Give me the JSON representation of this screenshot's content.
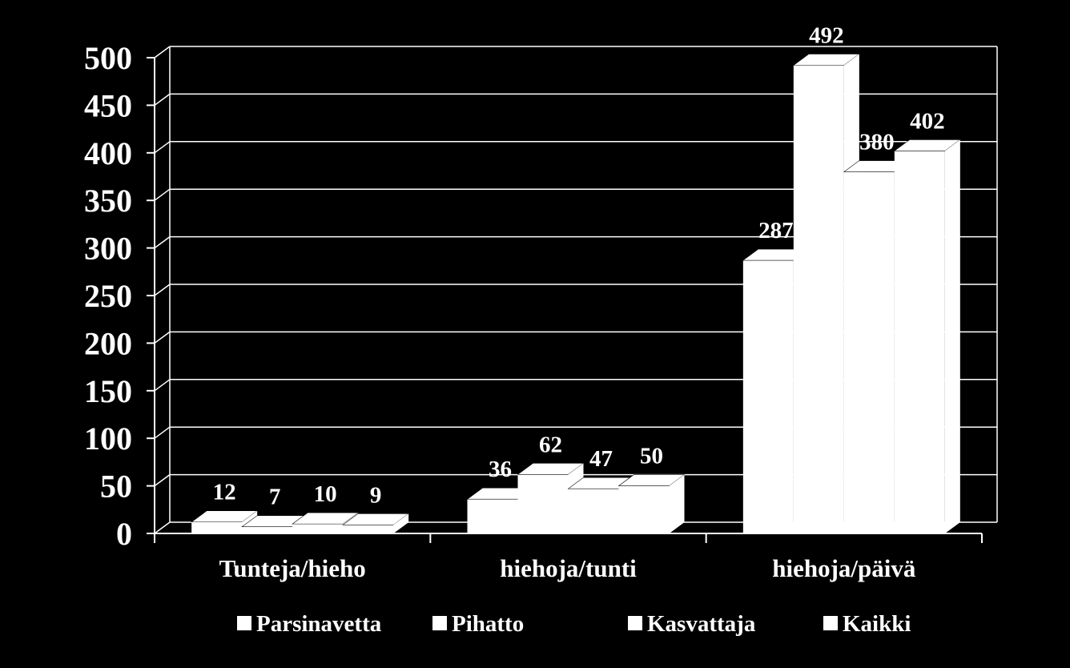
{
  "chart_data": {
    "type": "bar",
    "style": "3d-clustered",
    "title": "",
    "xlabel": "",
    "ylabel": "",
    "categories": [
      "Tunteja/hieho",
      "hiehoja/tunti",
      "hiehoja/päivä"
    ],
    "series": [
      {
        "name": "Parsinavetta",
        "values": [
          12,
          36,
          287
        ]
      },
      {
        "name": "Pihatto",
        "values": [
          7,
          62,
          492
        ]
      },
      {
        "name": "Kasvattaja",
        "values": [
          10,
          47,
          380
        ]
      },
      {
        "name": "Kaikki",
        "values": [
          9,
          50,
          402
        ]
      }
    ],
    "ylim": [
      0,
      500
    ],
    "yticks": [
      0,
      50,
      100,
      150,
      200,
      250,
      300,
      350,
      400,
      450,
      500
    ],
    "grid": true,
    "legend_position": "bottom",
    "colors": {
      "background": "#000000",
      "bars": "#ffffff",
      "text": "#ffffff",
      "gridlines": "#ffffff"
    }
  }
}
